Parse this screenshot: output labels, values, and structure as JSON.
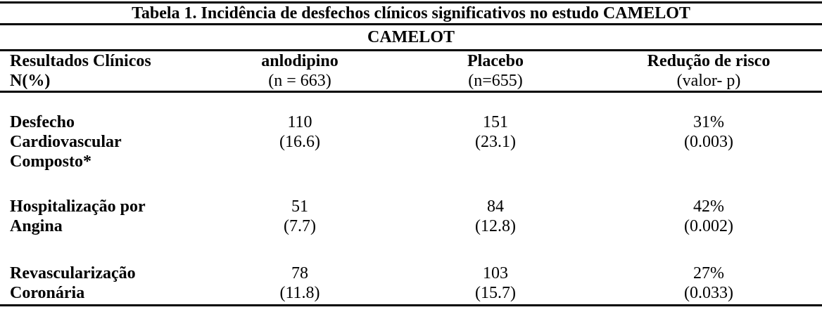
{
  "page": {
    "background_color": "#ffffff",
    "text_color": "#000000",
    "rule_color": "#000000"
  },
  "table": {
    "title": "Tabela 1. Incidência de desfechos clínicos significativos no estudo CAMELOT",
    "subtitle": "CAMELOT",
    "columns": [
      {
        "lines": [
          "Resultados Clínicos",
          "N(%)"
        ]
      },
      {
        "lines": [
          "anlodipino",
          "(n = 663)"
        ]
      },
      {
        "lines": [
          "Placebo",
          "(n=655)"
        ]
      },
      {
        "lines": [
          "Redução de risco",
          "(valor- p)"
        ]
      }
    ],
    "rows": [
      {
        "label": [
          "Desfecho",
          "Cardiovascular",
          "Composto*"
        ],
        "anlodipino": [
          "110",
          "(16.6)"
        ],
        "placebo": [
          "151",
          "(23.1)"
        ],
        "risk_reduction": [
          "31%",
          "(0.003)"
        ]
      },
      {
        "label": [
          "Hospitalização por",
          "Angina"
        ],
        "anlodipino": [
          "51",
          "(7.7)"
        ],
        "placebo": [
          "84",
          "(12.8)"
        ],
        "risk_reduction": [
          "42%",
          "(0.002)"
        ]
      },
      {
        "label": [
          "Revascularização",
          "Coronária"
        ],
        "anlodipino": [
          "78",
          "(11.8)"
        ],
        "placebo": [
          "103",
          "(15.7)"
        ],
        "risk_reduction": [
          "27%",
          "(0.033)"
        ]
      }
    ]
  }
}
